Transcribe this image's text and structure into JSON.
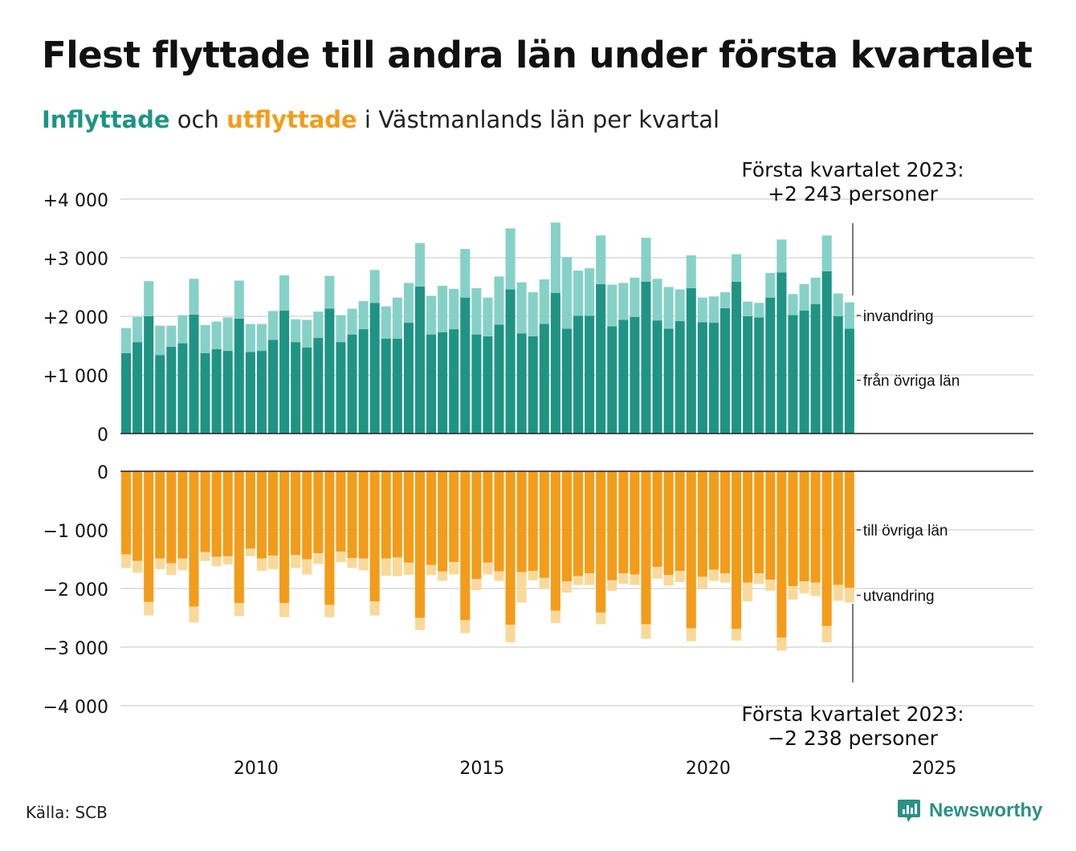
{
  "title": "Flest flyttade till andra län under första kvartalet",
  "subtitle": {
    "part1": "Inflyttade",
    "part2": " och ",
    "part3": "utflyttade",
    "part4": " i Västmanlands län per kvartal"
  },
  "source": "Källa: SCB",
  "brand": "Newsworthy",
  "colors": {
    "in_dark": "#1f9484",
    "in_light": "#86d1c7",
    "out_dark": "#f39c1a",
    "out_light": "#f9d99a",
    "grid": "#e2e2e2",
    "brand": "#2b9185"
  },
  "chart_data": {
    "type": "bar",
    "title": "Inflyttade och utflyttade i Västmanlands län per kvartal",
    "x_start": 2007.0,
    "x_step": 0.25,
    "xlim": [
      2007.0,
      2027.0
    ],
    "x_ticks": [
      "2010",
      "2015",
      "2020",
      "2025"
    ],
    "ylim": [
      -4000,
      4000
    ],
    "y_ticks_top": [
      "+4 000",
      "+3 000",
      "+2 000",
      "+1 000",
      "0"
    ],
    "y_ticks_bottom": [
      "0",
      "−1 000",
      "−2 000",
      "−3 000",
      "−4 000"
    ],
    "series": [
      {
        "name": "från övriga län",
        "values": [
          1370,
          1560,
          2000,
          1340,
          1480,
          1540,
          2030,
          1370,
          1440,
          1410,
          1960,
          1390,
          1410,
          1600,
          2100,
          1560,
          1470,
          1630,
          2130,
          1560,
          1690,
          1780,
          2230,
          1620,
          1620,
          1890,
          2510,
          1690,
          1730,
          1780,
          2320,
          1690,
          1660,
          1860,
          2460,
          1710,
          1660,
          1870,
          2400,
          1790,
          2010,
          2010,
          2550,
          1830,
          1940,
          1990,
          2590,
          1930,
          1790,
          1920,
          2480,
          1900,
          1890,
          2140,
          2590,
          2000,
          1980,
          2320,
          2750,
          2020,
          2100,
          2210,
          2770,
          2000,
          1790
        ]
      },
      {
        "name": "invandring",
        "values": [
          430,
          430,
          600,
          500,
          360,
          480,
          610,
          480,
          470,
          570,
          650,
          480,
          460,
          490,
          600,
          390,
          470,
          450,
          560,
          460,
          440,
          480,
          560,
          550,
          700,
          680,
          740,
          660,
          790,
          690,
          830,
          790,
          660,
          820,
          1040,
          870,
          750,
          760,
          1200,
          1220,
          770,
          810,
          830,
          710,
          630,
          670,
          750,
          710,
          710,
          540,
          560,
          420,
          450,
          270,
          470,
          250,
          250,
          420,
          560,
          360,
          450,
          450,
          610,
          390,
          450
        ]
      },
      {
        "name": "till övriga län",
        "values": [
          1420,
          1530,
          2230,
          1490,
          1570,
          1490,
          2310,
          1380,
          1460,
          1450,
          2250,
          1320,
          1490,
          1440,
          2250,
          1430,
          1500,
          1400,
          2280,
          1370,
          1480,
          1490,
          2220,
          1490,
          1470,
          1560,
          2500,
          1600,
          1710,
          1550,
          2540,
          1840,
          1560,
          1710,
          2620,
          1720,
          1700,
          1820,
          2380,
          1880,
          1790,
          1740,
          2410,
          1860,
          1740,
          1760,
          2610,
          1630,
          1770,
          1700,
          2680,
          1800,
          1680,
          1740,
          2690,
          1900,
          1740,
          1850,
          2840,
          1960,
          1880,
          1900,
          2640,
          1940,
          1990
        ]
      },
      {
        "name": "utvandring",
        "values": [
          230,
          200,
          230,
          180,
          200,
          200,
          270,
          150,
          160,
          140,
          220,
          130,
          210,
          230,
          240,
          220,
          260,
          180,
          210,
          180,
          170,
          200,
          240,
          290,
          320,
          210,
          210,
          170,
          160,
          210,
          220,
          190,
          200,
          160,
          300,
          520,
          160,
          180,
          210,
          190,
          150,
          200,
          200,
          180,
          180,
          180,
          250,
          200,
          180,
          190,
          220,
          210,
          190,
          160,
          200,
          320,
          180,
          190,
          220,
          230,
          200,
          230,
          280,
          270,
          250
        ]
      }
    ],
    "annotations": [
      {
        "text_line1": "Första kvartalet 2023:",
        "text_line2": "+2 243 personer"
      },
      {
        "text_line1": "Första kvartalet 2023:",
        "text_line2": "−2 238 personer"
      }
    ]
  }
}
